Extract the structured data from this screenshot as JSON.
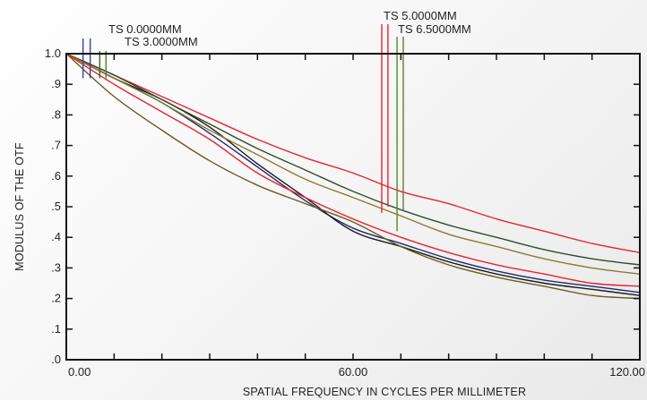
{
  "chart_data": {
    "type": "line",
    "xlabel": "SPATIAL FREQUENCY IN CYCLES PER MILLIMETER",
    "ylabel": "MODULUS OF THE OTF",
    "xlim": [
      0,
      120
    ],
    "ylim": [
      0,
      1
    ],
    "x_ticks": [
      {
        "value": 0,
        "label": "0.00"
      },
      {
        "value": 60,
        "label": "60.00"
      },
      {
        "value": 120,
        "label": "120.00"
      }
    ],
    "x_minor_ticks": [
      10,
      20,
      30,
      40,
      50,
      70,
      80,
      90,
      100,
      110
    ],
    "y_ticks": [
      {
        "value": 0.0,
        "label": ".0"
      },
      {
        "value": 0.1,
        "label": ".1"
      },
      {
        "value": 0.2,
        "label": ".2"
      },
      {
        "value": 0.3,
        "label": ".3"
      },
      {
        "value": 0.4,
        "label": ".4"
      },
      {
        "value": 0.5,
        "label": ".5"
      },
      {
        "value": 0.6,
        "label": ".6"
      },
      {
        "value": 0.7,
        "label": ".7"
      },
      {
        "value": 0.8,
        "label": ".8"
      },
      {
        "value": 0.9,
        "label": ".9"
      },
      {
        "value": 1.0,
        "label": "1.0"
      }
    ],
    "legend_groups": [
      {
        "labels": [
          "TS 0.0000MM",
          "TS 3.0000MM"
        ],
        "marker_x": [
          3.5,
          5.0,
          7.0,
          8.3
        ],
        "marker_bottom_y": 0.92
      },
      {
        "labels": [
          "TS 5.0000MM",
          "TS 6.5000MM"
        ],
        "marker_x": [
          66.0,
          67.3,
          69.2,
          70.5
        ],
        "marker_bottom_y": [
          0.48,
          0.5,
          0.42,
          0.49
        ]
      }
    ],
    "series": [
      {
        "color": "#1f2a6b",
        "points": [
          [
            0,
            1
          ],
          [
            10,
            0.92
          ],
          [
            20,
            0.84
          ],
          [
            30,
            0.74
          ],
          [
            40,
            0.63
          ],
          [
            50,
            0.52
          ],
          [
            60,
            0.43
          ],
          [
            70,
            0.38
          ],
          [
            80,
            0.33
          ],
          [
            90,
            0.29
          ],
          [
            100,
            0.26
          ],
          [
            110,
            0.24
          ],
          [
            120,
            0.22
          ]
        ]
      },
      {
        "color": "#1a1a1a",
        "points": [
          [
            0,
            1
          ],
          [
            10,
            0.92
          ],
          [
            20,
            0.85
          ],
          [
            30,
            0.76
          ],
          [
            40,
            0.64
          ],
          [
            50,
            0.53
          ],
          [
            60,
            0.42
          ],
          [
            70,
            0.37
          ],
          [
            80,
            0.32
          ],
          [
            90,
            0.28
          ],
          [
            100,
            0.25
          ],
          [
            110,
            0.23
          ],
          [
            120,
            0.21
          ]
        ]
      },
      {
        "color": "#e8232f",
        "points": [
          [
            0,
            1
          ],
          [
            10,
            0.93
          ],
          [
            20,
            0.86
          ],
          [
            30,
            0.79
          ],
          [
            40,
            0.72
          ],
          [
            50,
            0.66
          ],
          [
            60,
            0.61
          ],
          [
            70,
            0.55
          ],
          [
            80,
            0.51
          ],
          [
            90,
            0.46
          ],
          [
            100,
            0.42
          ],
          [
            110,
            0.38
          ],
          [
            120,
            0.35
          ]
        ]
      },
      {
        "color": "#2f4d2a",
        "points": [
          [
            0,
            1
          ],
          [
            10,
            0.93
          ],
          [
            20,
            0.85
          ],
          [
            30,
            0.77
          ],
          [
            40,
            0.69
          ],
          [
            50,
            0.62
          ],
          [
            60,
            0.55
          ],
          [
            70,
            0.49
          ],
          [
            80,
            0.44
          ],
          [
            90,
            0.4
          ],
          [
            100,
            0.36
          ],
          [
            110,
            0.33
          ],
          [
            120,
            0.31
          ]
        ]
      },
      {
        "color": "#8a7a30",
        "points": [
          [
            0,
            1
          ],
          [
            10,
            0.92
          ],
          [
            20,
            0.84
          ],
          [
            30,
            0.75
          ],
          [
            40,
            0.67
          ],
          [
            50,
            0.59
          ],
          [
            60,
            0.53
          ],
          [
            70,
            0.47
          ],
          [
            80,
            0.41
          ],
          [
            90,
            0.37
          ],
          [
            100,
            0.33
          ],
          [
            110,
            0.3
          ],
          [
            120,
            0.28
          ]
        ]
      },
      {
        "color": "#e8232f",
        "points": [
          [
            0,
            1
          ],
          [
            10,
            0.9
          ],
          [
            20,
            0.81
          ],
          [
            30,
            0.72
          ],
          [
            40,
            0.61
          ],
          [
            50,
            0.53
          ],
          [
            60,
            0.46
          ],
          [
            70,
            0.4
          ],
          [
            80,
            0.35
          ],
          [
            90,
            0.31
          ],
          [
            100,
            0.28
          ],
          [
            110,
            0.25
          ],
          [
            120,
            0.24
          ]
        ]
      },
      {
        "color": "#6b5a22",
        "points": [
          [
            0,
            1
          ],
          [
            10,
            0.86
          ],
          [
            20,
            0.75
          ],
          [
            30,
            0.65
          ],
          [
            40,
            0.57
          ],
          [
            50,
            0.51
          ],
          [
            60,
            0.45
          ],
          [
            70,
            0.37
          ],
          [
            80,
            0.31
          ],
          [
            90,
            0.27
          ],
          [
            100,
            0.24
          ],
          [
            110,
            0.21
          ],
          [
            120,
            0.2
          ]
        ]
      }
    ]
  },
  "colors": {
    "frame": "#111111",
    "marker_group_1": [
      "#3a3f9a",
      "#3a3f9a",
      "#2f6a2a",
      "#5b7a2a"
    ],
    "marker_group_2": [
      "#e8232f",
      "#e8232f",
      "#4f8a2a",
      "#6b7a2a"
    ]
  }
}
